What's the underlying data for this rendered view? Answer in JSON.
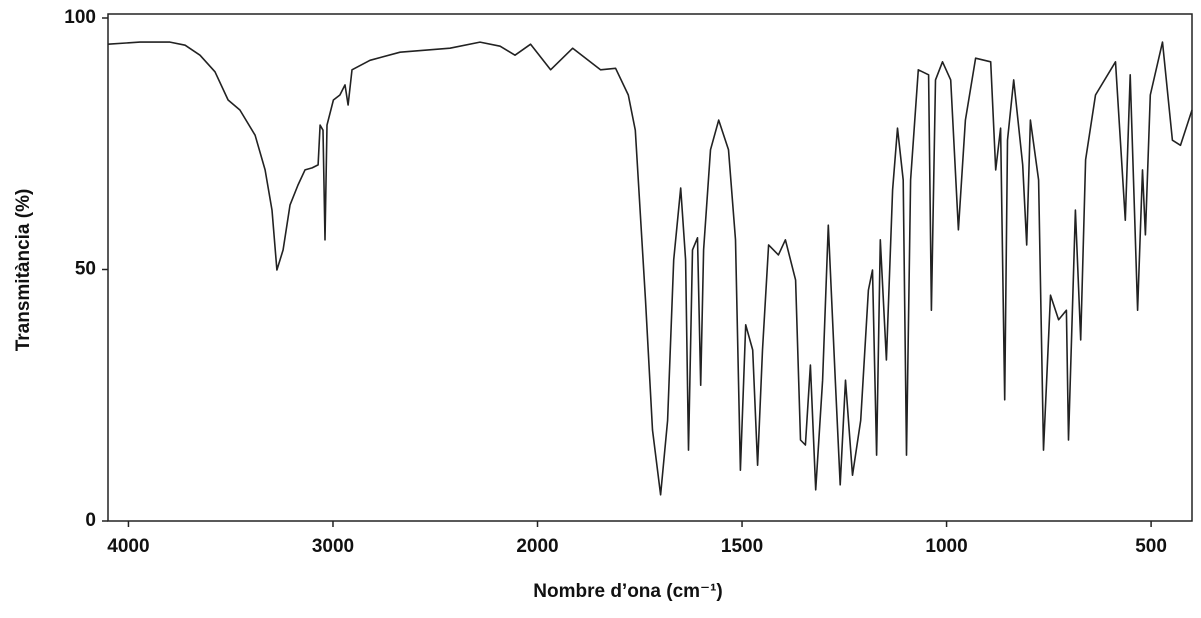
{
  "chart_data": {
    "type": "line",
    "x_label": "Nombre d’ona (cm⁻¹)",
    "y_label": "Transmitància (%)",
    "color": "#222222",
    "xlim": [
      4100,
      400
    ],
    "xticks": [
      4000,
      3000,
      2000,
      1500,
      1000,
      500
    ],
    "x_scale_change": {
      "at": 2000,
      "factor": 2
    },
    "ylim": [
      0,
      100
    ],
    "yticks": [
      0,
      50,
      100
    ],
    "x": [
      4100,
      3944,
      3797,
      3723,
      3650,
      3577,
      3513,
      3455,
      3381,
      3332,
      3298,
      3274,
      3244,
      3210,
      3171,
      3137,
      3102,
      3073,
      3063,
      3049,
      3039,
      3029,
      2998,
      2966,
      2941,
      2926,
      2907,
      2819,
      2672,
      2428,
      2281,
      2183,
      2110,
      2034,
      1968,
      1914,
      1846,
      1809,
      1778,
      1761,
      1736,
      1719,
      1699,
      1682,
      1667,
      1650,
      1638,
      1631,
      1621,
      1609,
      1601,
      1594,
      1577,
      1557,
      1533,
      1516,
      1504,
      1491,
      1474,
      1462,
      1450,
      1435,
      1411,
      1394,
      1369,
      1357,
      1345,
      1333,
      1320,
      1303,
      1289,
      1272,
      1260,
      1247,
      1230,
      1210,
      1191,
      1181,
      1171,
      1162,
      1147,
      1132,
      1120,
      1106,
      1098,
      1088,
      1069,
      1044,
      1037,
      1027,
      1010,
      990,
      971,
      954,
      929,
      892,
      880,
      868,
      858,
      851,
      836,
      814,
      804,
      795,
      775,
      763,
      746,
      726,
      707,
      702,
      685,
      672,
      660,
      636,
      587,
      563,
      551,
      533,
      521,
      514,
      502,
      472,
      448,
      428,
      400
    ],
    "values": [
      94.8,
      95.2,
      95.2,
      94.6,
      92.6,
      89.3,
      83.7,
      81.7,
      76.7,
      69.8,
      61.8,
      49.9,
      53.9,
      62.8,
      66.8,
      69.8,
      70.2,
      70.8,
      78.7,
      77.7,
      55.9,
      78.7,
      83.7,
      84.7,
      86.7,
      82.7,
      89.7,
      91.6,
      93.2,
      94,
      95.2,
      94.4,
      92.6,
      94.8,
      89.7,
      94,
      89.7,
      90,
      84.7,
      77.7,
      43.9,
      18.1,
      5.2,
      20,
      51.9,
      66.2,
      51.9,
      14.1,
      53.9,
      56.3,
      27,
      53.9,
      73.8,
      79.7,
      73.8,
      55.9,
      10.1,
      39,
      34,
      11.1,
      34,
      54.9,
      52.9,
      55.9,
      47.9,
      16.1,
      15.1,
      31,
      6.2,
      28,
      58.8,
      28,
      7.2,
      28,
      9.1,
      20,
      45.9,
      49.9,
      13.1,
      55.9,
      32,
      65.8,
      78.1,
      67.8,
      13.1,
      67.8,
      89.7,
      88.7,
      41.9,
      87.7,
      91.3,
      87.7,
      57.9,
      79.7,
      92,
      91.3,
      69.8,
      78.1,
      24.1,
      75.7,
      87.7,
      70.8,
      54.9,
      79.7,
      67.8,
      14.1,
      44.9,
      40,
      41.9,
      16.1,
      61.8,
      36,
      71.8,
      84.7,
      91.3,
      59.8,
      88.7,
      41.9,
      69.8,
      56.9,
      84.7,
      95.2,
      75.7,
      74.7,
      81.7
    ]
  }
}
